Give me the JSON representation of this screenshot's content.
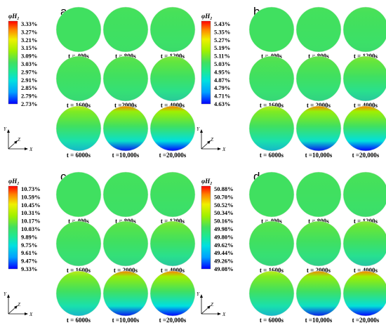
{
  "colorbar_title": "φH₂",
  "axis_labels": {
    "y": "Y",
    "z": "Z",
    "x": "X"
  },
  "palette": [
    "#0000ff",
    "#00a0ff",
    "#00e0e0",
    "#20e890",
    "#40e060",
    "#a0f000",
    "#f0f000",
    "#ff8000",
    "#ff0000"
  ],
  "panels": [
    {
      "letter": "a",
      "colorbar_ticks": [
        "3.33%",
        "3.27%",
        "3.21%",
        "3.15%",
        "3.09%",
        "3.03%",
        "2.97%",
        "2.91%",
        "2.85%",
        "2.79%",
        "2.73%"
      ],
      "snapshots": [
        {
          "label": "t = 400s",
          "stratification": 0.0
        },
        {
          "label": "t = 800s",
          "stratification": 0.03
        },
        {
          "label": "t = 1200s",
          "stratification": 0.06
        },
        {
          "label": "t = 1600s",
          "stratification": 0.1
        },
        {
          "label": "t =2000s",
          "stratification": 0.15
        },
        {
          "label": "t = 4000s",
          "stratification": 0.3
        },
        {
          "label": "t = 6000s",
          "stratification": 0.55
        },
        {
          "label": "t =10,000s",
          "stratification": 0.75
        },
        {
          "label": "t =20,000s",
          "stratification": 0.95
        }
      ]
    },
    {
      "letter": "b",
      "colorbar_ticks": [
        "5.43%",
        "5.35%",
        "5.27%",
        "5.19%",
        "5.11%",
        "5.03%",
        "4.95%",
        "4.87%",
        "4.79%",
        "4.71%",
        "4.63%"
      ],
      "snapshots": [
        {
          "label": "t = 400s",
          "stratification": 0.0
        },
        {
          "label": "t = 800s",
          "stratification": 0.03
        },
        {
          "label": "t = 1200s",
          "stratification": 0.06
        },
        {
          "label": "t = 1600s",
          "stratification": 0.12
        },
        {
          "label": "t = 2000s",
          "stratification": 0.18
        },
        {
          "label": "t = 4000s",
          "stratification": 0.32
        },
        {
          "label": "t = 6000s",
          "stratification": 0.55
        },
        {
          "label": "t =10,000s",
          "stratification": 0.75
        },
        {
          "label": "t =20,000s",
          "stratification": 0.9
        }
      ]
    },
    {
      "letter": "c",
      "colorbar_ticks": [
        "10.73%",
        "10.59%",
        "10.45%",
        "10.31%",
        "10.17%",
        "10.03%",
        "9.89%",
        "9.75%",
        "9.61%",
        "9.47%",
        "9.33%"
      ],
      "snapshots": [
        {
          "label": "t = 400s",
          "stratification": 0.0
        },
        {
          "label": "t = 800s",
          "stratification": 0.03
        },
        {
          "label": "t = 1200s",
          "stratification": 0.06
        },
        {
          "label": "t = 1600s",
          "stratification": 0.12
        },
        {
          "label": "t = 2000s",
          "stratification": 0.18
        },
        {
          "label": "t = 4000s",
          "stratification": 0.32
        },
        {
          "label": "t = 6000s",
          "stratification": 0.55
        },
        {
          "label": "t =10,000s",
          "stratification": 0.75
        },
        {
          "label": "t =20,000s",
          "stratification": 0.95
        }
      ]
    },
    {
      "letter": "d",
      "colorbar_ticks": [
        "50.88%",
        "50.70%",
        "50.52%",
        "50.34%",
        "50.16%",
        "49.98%",
        "49.80%",
        "49.62%",
        "49.44%",
        "49.26%",
        "49.08%"
      ],
      "snapshots": [
        {
          "label": "t = 400s",
          "stratification": 0.0
        },
        {
          "label": "t = 800s",
          "stratification": 0.03
        },
        {
          "label": "t = 1200s",
          "stratification": 0.06
        },
        {
          "label": "t = 1600s",
          "stratification": 0.14
        },
        {
          "label": "t = 2000s",
          "stratification": 0.22
        },
        {
          "label": "t = 4000s",
          "stratification": 0.35
        },
        {
          "label": "t = 6000s",
          "stratification": 0.55
        },
        {
          "label": "t =10,000s",
          "stratification": 0.72
        },
        {
          "label": "t =20,000s",
          "stratification": 0.85
        }
      ]
    }
  ]
}
